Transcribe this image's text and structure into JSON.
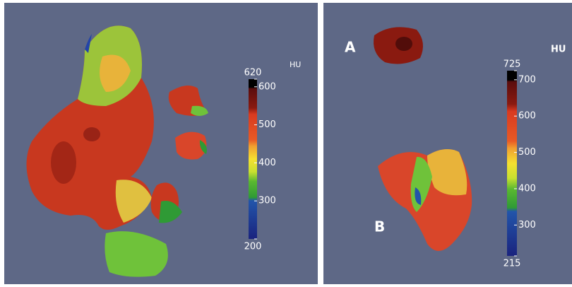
{
  "panels": [
    {
      "colorbar": {
        "unit": "HU",
        "range": [
          200,
          620
        ],
        "ticks": [
          200,
          300,
          400,
          500,
          600,
          620
        ]
      }
    },
    {
      "labels": [
        "A",
        "B"
      ],
      "colorbar": {
        "unit": "HU",
        "range": [
          215,
          725
        ],
        "ticks": [
          215,
          300,
          400,
          500,
          600,
          700,
          725
        ]
      }
    }
  ]
}
